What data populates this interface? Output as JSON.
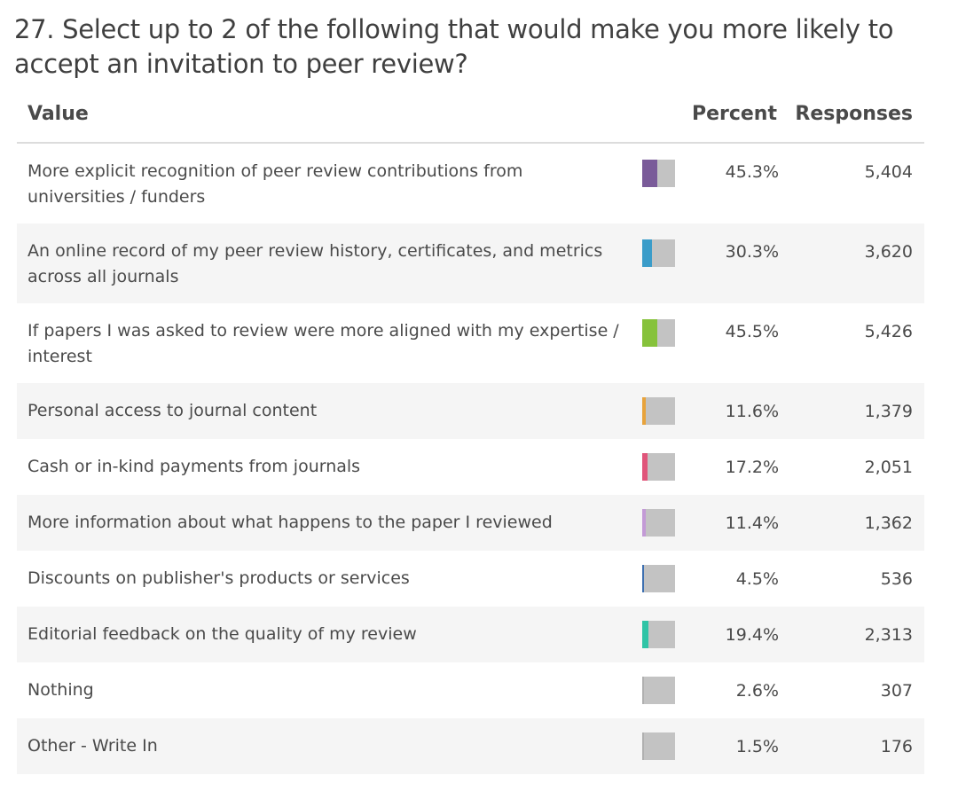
{
  "question": "27. Select up to 2 of the following that would make you more likely to accept an invitation to peer review?",
  "headers": {
    "value": "Value",
    "percent": "Percent",
    "responses": "Responses"
  },
  "chart_data": {
    "type": "table",
    "columns": [
      "Value",
      "Percent",
      "Responses"
    ],
    "rows": [
      {
        "label": "More explicit recognition of peer review contributions from universities / funders",
        "percent": "45.3%",
        "percent_value": 45.3,
        "responses": "5,404",
        "color": "#7a5b99"
      },
      {
        "label": "An online record of my peer review history, certificates, and metrics across all journals",
        "percent": "30.3%",
        "percent_value": 30.3,
        "responses": "3,620",
        "color": "#3a9cc9"
      },
      {
        "label": "If papers I was asked to review were more aligned with my expertise / interest",
        "percent": "45.5%",
        "percent_value": 45.5,
        "responses": "5,426",
        "color": "#86c23b"
      },
      {
        "label": "Personal access to journal content",
        "percent": "11.6%",
        "percent_value": 11.6,
        "responses": "1,379",
        "color": "#e8a33c"
      },
      {
        "label": "Cash or in-kind payments from journals",
        "percent": "17.2%",
        "percent_value": 17.2,
        "responses": "2,051",
        "color": "#e0557a"
      },
      {
        "label": "More information about what happens to the paper I reviewed",
        "percent": "11.4%",
        "percent_value": 11.4,
        "responses": "1,362",
        "color": "#c39ad6"
      },
      {
        "label": "Discounts on publisher's products or services",
        "percent": "4.5%",
        "percent_value": 4.5,
        "responses": "536",
        "color": "#3d6fb0"
      },
      {
        "label": "Editorial feedback on the quality of my review",
        "percent": "19.4%",
        "percent_value": 19.4,
        "responses": "2,313",
        "color": "#2fc4a6"
      },
      {
        "label": "Nothing",
        "percent": "2.6%",
        "percent_value": 2.6,
        "responses": "307",
        "color": "#b0b0b0"
      },
      {
        "label": "Other - Write In",
        "percent": "1.5%",
        "percent_value": 1.5,
        "responses": "176",
        "color": "#b0b0b0"
      }
    ]
  }
}
